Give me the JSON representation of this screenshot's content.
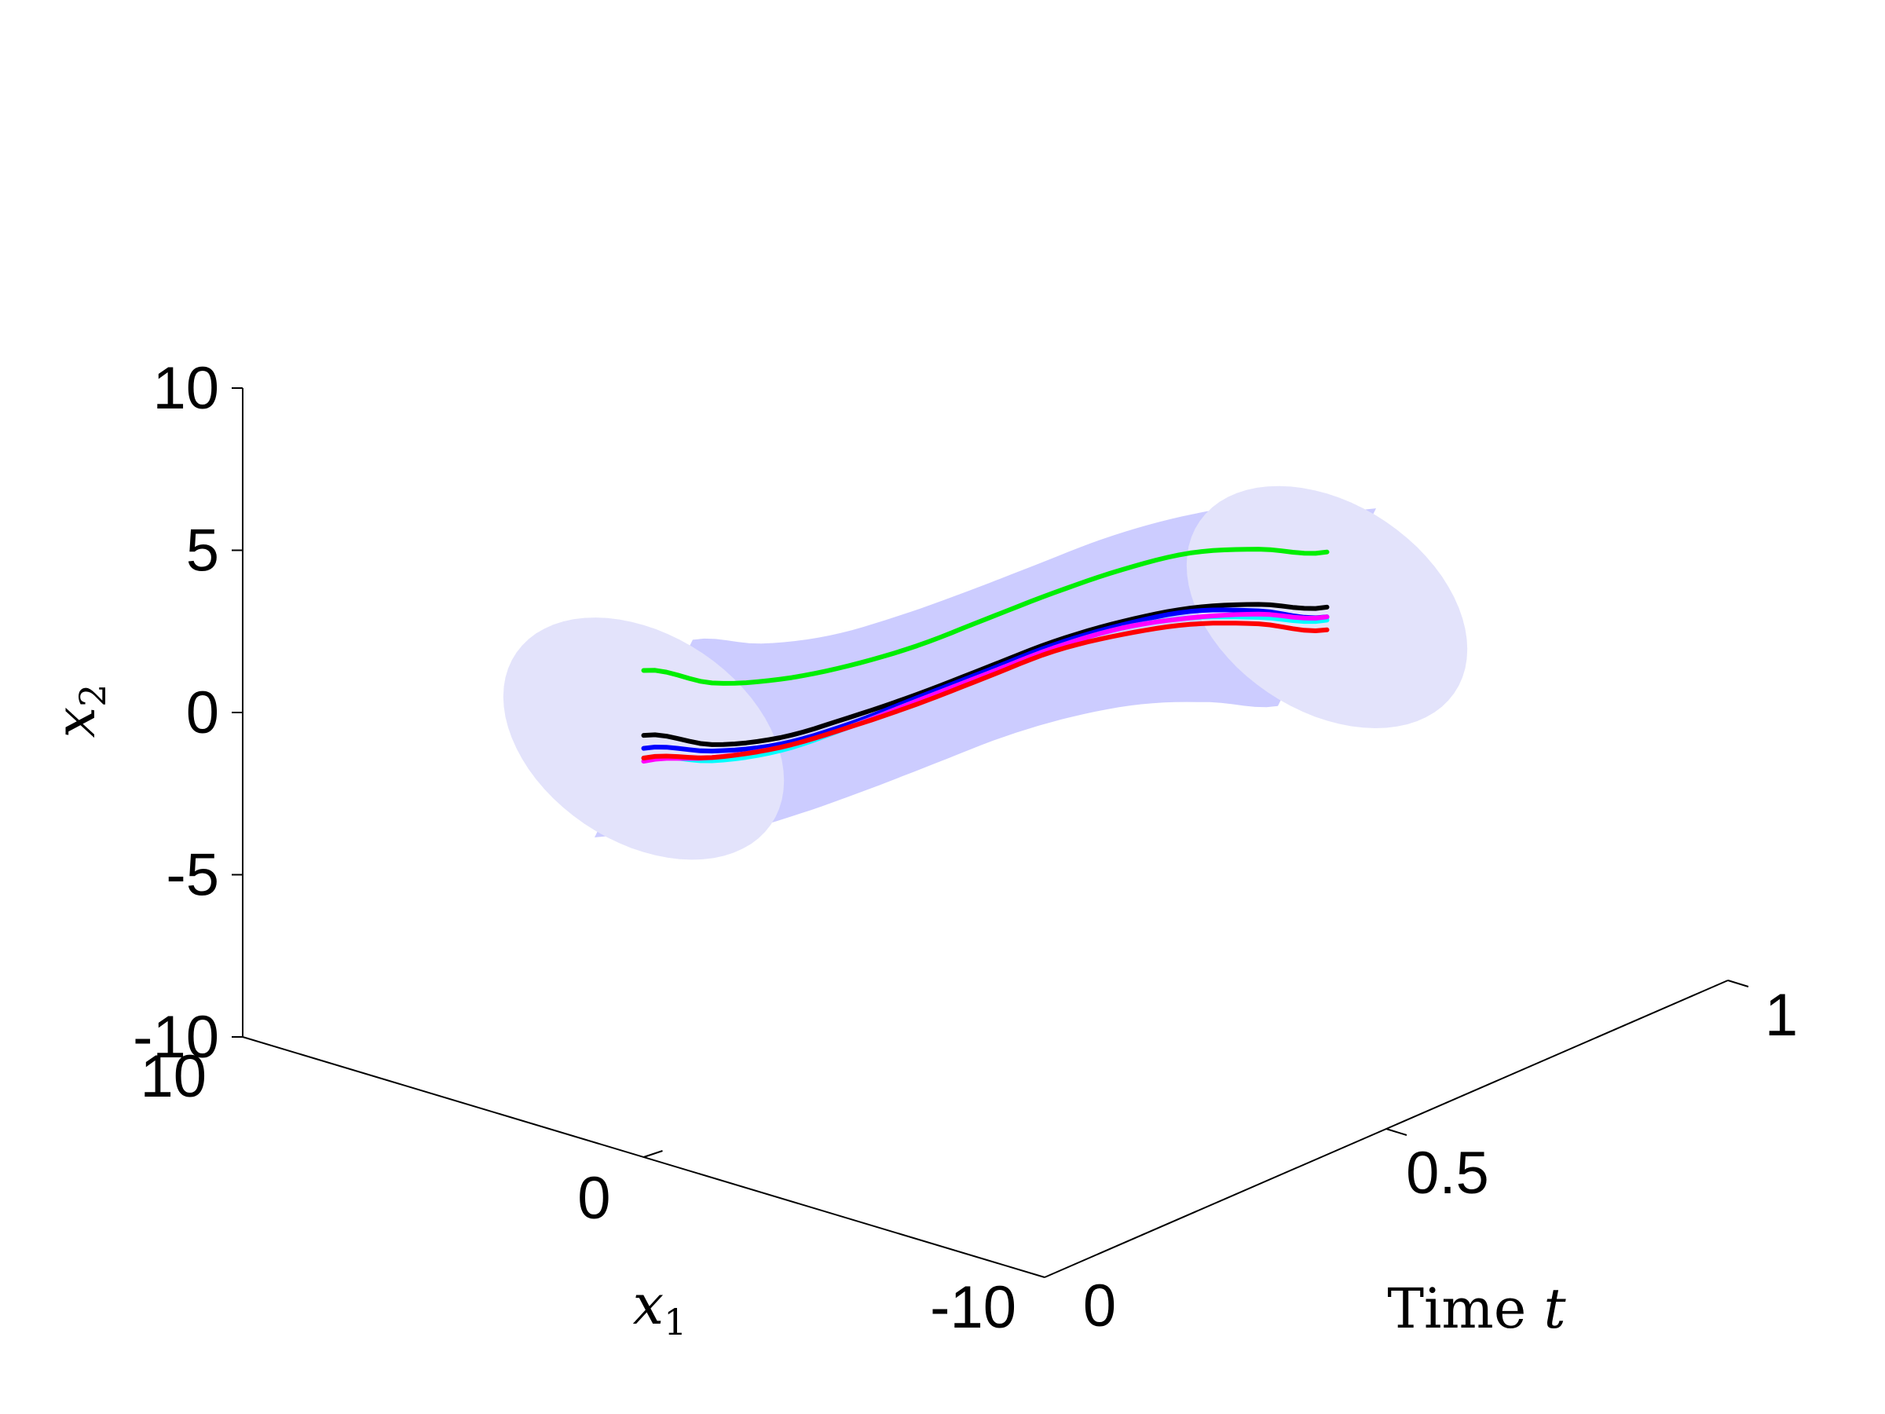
{
  "chart_data": {
    "type": "line",
    "projection": "3d",
    "title": "",
    "xlabel": "x_1",
    "ylabel": "Time t",
    "zlabel": "x_2",
    "xlim": [
      -10,
      10
    ],
    "ylim": [
      0,
      1
    ],
    "zlim": [
      -10,
      10
    ],
    "x_ticks": [
      "10",
      "0",
      "-10"
    ],
    "y_ticks": [
      "0",
      "0.5",
      "1"
    ],
    "z_ticks": [
      "10",
      "5",
      "0",
      "-5",
      "-10"
    ],
    "grid": false,
    "legend": "none",
    "tube": {
      "color": "#ccccff",
      "cap_color": "#e3e3fb",
      "radius_x1": 3.5,
      "radius_x2": 3.5
    },
    "series": [
      {
        "color": "#00ee00",
        "t": [
          0,
          0.1,
          0.2,
          0.3,
          0.4,
          0.5,
          0.6,
          0.7,
          0.8,
          0.9,
          1.0
        ],
        "x1": [
          0,
          0,
          0,
          0,
          0,
          0,
          0,
          0,
          0,
          0,
          0
        ],
        "x2": [
          5.0,
          3.7,
          2.9,
          2.4,
          2.1,
          2.0,
          1.9,
          1.7,
          1.3,
          0.5,
          -0.5
        ]
      },
      {
        "color": "#000000",
        "t": [
          0,
          0.1,
          0.2,
          0.3,
          0.4,
          0.5,
          0.6,
          0.7,
          0.8,
          0.9,
          1.0
        ],
        "x1": [
          0,
          0,
          0,
          0,
          0,
          0,
          0,
          0,
          0,
          0,
          0
        ],
        "x2": [
          3.0,
          1.8,
          1.1,
          0.8,
          0.6,
          0.5,
          0.4,
          0.1,
          -0.4,
          -1.2,
          -2.2
        ]
      },
      {
        "color": "#0000ff",
        "t": [
          0,
          0.1,
          0.2,
          0.3,
          0.4,
          0.5,
          0.6,
          0.7,
          0.8,
          0.9,
          1.0
        ],
        "x1": [
          0,
          0,
          0,
          0,
          0,
          0,
          0,
          0,
          0,
          0,
          0
        ],
        "x2": [
          2.6,
          1.6,
          0.9,
          0.6,
          0.5,
          0.4,
          0.3,
          0.0,
          -0.5,
          -1.4,
          -2.5
        ]
      },
      {
        "color": "#00ffff",
        "t": [
          0,
          0.1,
          0.2,
          0.3,
          0.4,
          0.5,
          0.6,
          0.7,
          0.8,
          0.9,
          1.0
        ],
        "x1": [
          0,
          0,
          0,
          0,
          0,
          0,
          0,
          0,
          0,
          0,
          0
        ],
        "x2": [
          2.3,
          1.3,
          0.7,
          0.5,
          0.4,
          0.3,
          0.2,
          -0.1,
          -0.7,
          -1.6,
          -2.6
        ]
      },
      {
        "color": "#ff00ff",
        "t": [
          0,
          0.1,
          0.2,
          0.3,
          0.4,
          0.5,
          0.6,
          0.7,
          0.8,
          0.9,
          1.0
        ],
        "x1": [
          0,
          0,
          0,
          0,
          0,
          0,
          0,
          0,
          0,
          0,
          0
        ],
        "x2": [
          2.2,
          1.4,
          0.8,
          0.5,
          0.4,
          0.3,
          0.2,
          -0.1,
          -0.7,
          -1.5,
          -2.5
        ]
      },
      {
        "color": "#ff0000",
        "t": [
          0,
          0.1,
          0.2,
          0.3,
          0.4,
          0.5,
          0.6,
          0.7,
          0.8,
          0.9,
          1.0
        ],
        "x1": [
          0,
          0,
          0,
          0,
          0,
          0,
          0,
          0,
          0,
          0,
          0
        ],
        "x2": [
          2.3,
          1.4,
          0.8,
          0.5,
          0.3,
          0.2,
          0.1,
          -0.3,
          -0.9,
          -1.8,
          -2.9
        ]
      }
    ]
  }
}
